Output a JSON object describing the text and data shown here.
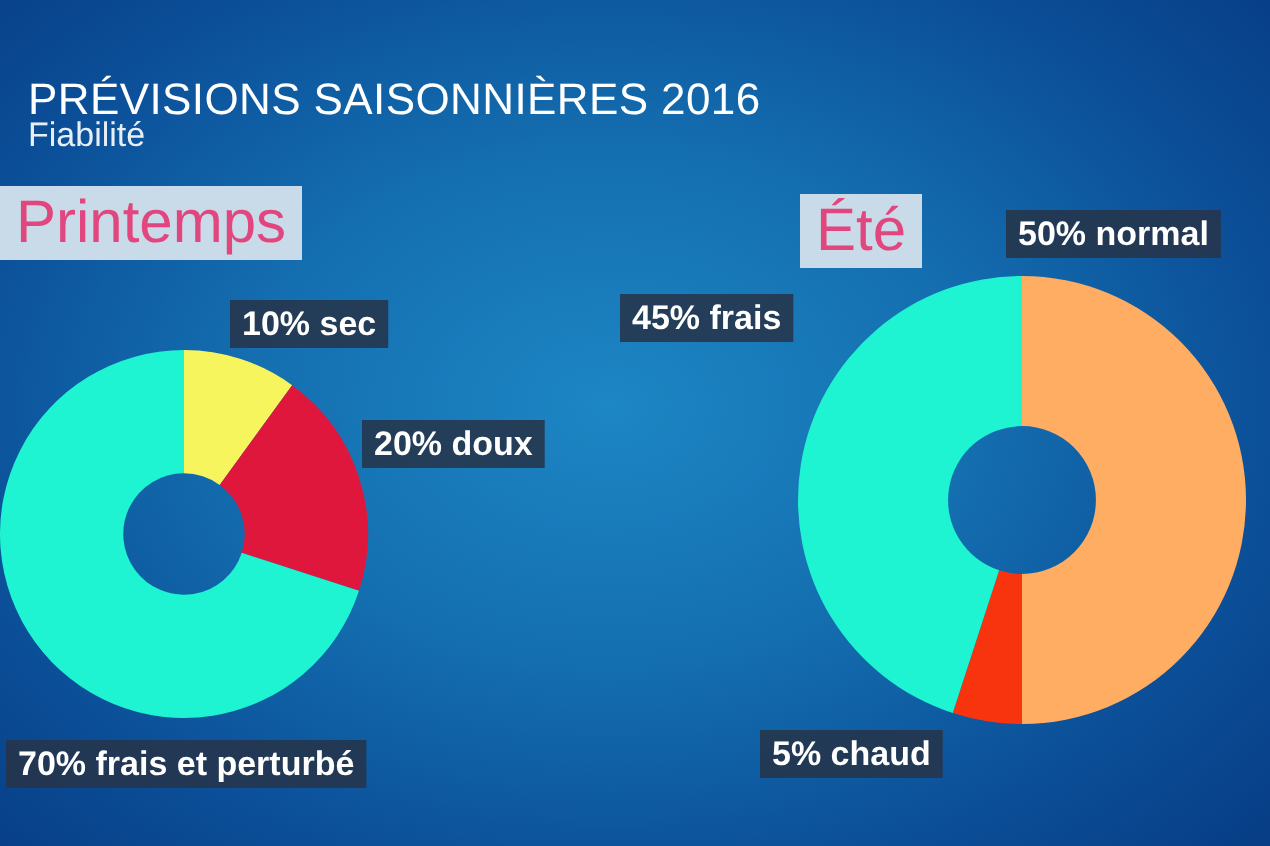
{
  "chart_data": [
    {
      "type": "other",
      "title": "PRÉVISIONS SAISONNIÈRES 2016",
      "subtitle": "Fiabilité"
    },
    {
      "type": "donut",
      "title": "Printemps",
      "categories": [
        "sec",
        "doux",
        "frais et perturbé"
      ],
      "values": [
        10,
        20,
        70
      ],
      "value_labels": [
        "10%",
        "20%",
        "70%"
      ],
      "colors": [
        "#f6f55e",
        "#e0173d",
        "#1ef3d2"
      ]
    },
    {
      "type": "donut",
      "title": "Été",
      "categories": [
        "normal",
        "chaud",
        "frais"
      ],
      "values": [
        50,
        5,
        45
      ],
      "value_labels": [
        "50%",
        "5%",
        "45%"
      ],
      "colors": [
        "#ffad62",
        "#f8340e",
        "#1ef3d2"
      ]
    }
  ]
}
